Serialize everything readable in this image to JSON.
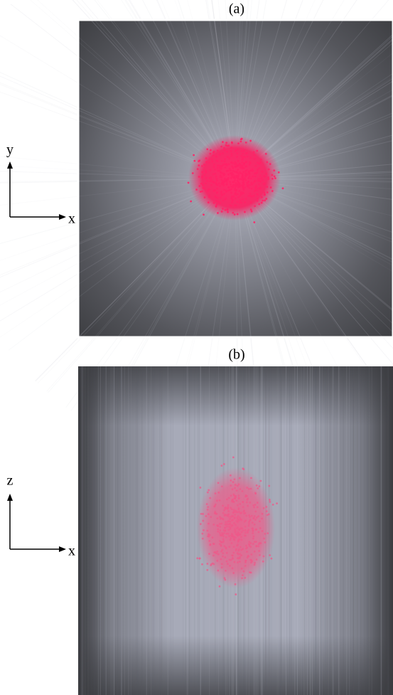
{
  "panels": [
    {
      "label": "(a)",
      "axes": {
        "vertical": "y",
        "horizontal": "x"
      }
    },
    {
      "label": "(b)",
      "axes": {
        "vertical": "z",
        "horizontal": "x"
      }
    }
  ]
}
